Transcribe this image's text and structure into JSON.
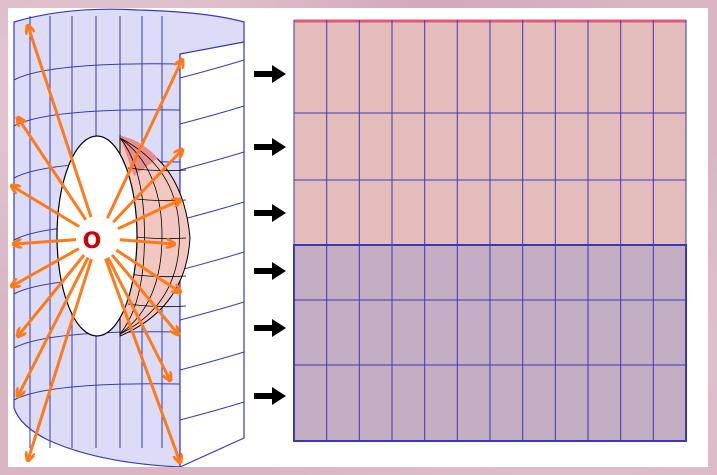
{
  "diagram": {
    "origin_label": "O",
    "colors": {
      "background": "#dab6c5",
      "panel": "#ffffff",
      "cylinder_fill": "#dcdcf6",
      "grid_line": "#3a3ab8",
      "arrow": "#ff7a1a",
      "origin": "#cc0000",
      "map_upper_fill": "#e4bcbc",
      "map_lower_fill": "#c4aec3",
      "map_top_edge": "#e05a78",
      "shutter_fill": "#f2c7c0",
      "pointer_arrow": "#000000"
    },
    "pointer_arrow_count": 6,
    "ray_count": 16
  }
}
